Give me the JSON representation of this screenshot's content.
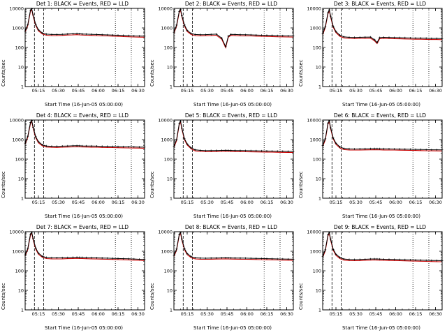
{
  "chart_data": {
    "type": "line",
    "layout": "3x3-grid",
    "ylabel": "Counts/sec",
    "xlabel": "Start Time (16-Jun-05 05:00:00)",
    "yscale": "log",
    "ylim": [
      1,
      10000
    ],
    "yticks": [
      [
        1,
        "1"
      ],
      [
        10,
        "10"
      ],
      [
        100,
        "100"
      ],
      [
        1000,
        "1000"
      ],
      [
        10000,
        "10000"
      ]
    ],
    "xlim_minutes_after_0500": [
      5,
      95
    ],
    "xticks": [
      [
        15,
        "05:15"
      ],
      [
        30,
        "05:30"
      ],
      [
        45,
        "05:45"
      ],
      [
        60,
        "06:00"
      ],
      [
        75,
        "06:15"
      ],
      [
        90,
        "06:30"
      ]
    ],
    "x_minor_step": 5,
    "vlines_dashed_minutes": [
      12,
      19
    ],
    "vlines_dotted_minutes": [
      73,
      85
    ],
    "series_legend": {
      "black": "Events",
      "red": "LLD"
    },
    "colors": {
      "events": "#000000",
      "lld": "#cc0000"
    },
    "lld_ratio": 0.88,
    "t": [
      5,
      7,
      9,
      10,
      11,
      13,
      15,
      18,
      21,
      25,
      29,
      33,
      37,
      41,
      44,
      46,
      48,
      51,
      55,
      59,
      63,
      67,
      71,
      75,
      79,
      83,
      87,
      91,
      95
    ],
    "detectors": [
      {
        "title": "Det 1: BLACK = Events, RED = LLD",
        "values": [
          700,
          1500,
          8000,
          9500,
          4500,
          1500,
          800,
          550,
          480,
          460,
          460,
          470,
          490,
          500,
          510,
          500,
          490,
          480,
          470,
          460,
          450,
          440,
          430,
          420,
          410,
          400,
          390,
          385,
          380
        ]
      },
      {
        "title": "Det 2: BLACK = Events, RED = LLD",
        "values": [
          600,
          1400,
          7000,
          9000,
          4200,
          1400,
          750,
          520,
          460,
          450,
          455,
          465,
          480,
          300,
          110,
          380,
          470,
          460,
          450,
          445,
          440,
          430,
          420,
          415,
          410,
          400,
          395,
          390,
          388
        ]
      },
      {
        "title": "Det 3: BLACK = Events, RED = LLD",
        "values": [
          500,
          1200,
          6000,
          8500,
          4000,
          1200,
          650,
          420,
          350,
          330,
          325,
          330,
          335,
          340,
          250,
          180,
          320,
          330,
          325,
          320,
          315,
          310,
          305,
          300,
          300,
          295,
          290,
          290,
          285
        ]
      },
      {
        "title": "Det 4: BLACK = Events, RED = LLD",
        "values": [
          650,
          1500,
          7500,
          9500,
          4300,
          1400,
          780,
          540,
          470,
          455,
          450,
          460,
          470,
          480,
          485,
          480,
          475,
          470,
          465,
          460,
          450,
          445,
          440,
          435,
          430,
          425,
          420,
          415,
          410
        ]
      },
      {
        "title": "Det 5: BLACK = Events, RED = LLD",
        "values": [
          450,
          1000,
          6500,
          9000,
          3800,
          1100,
          600,
          380,
          300,
          280,
          270,
          272,
          275,
          280,
          282,
          280,
          278,
          275,
          272,
          270,
          268,
          265,
          262,
          260,
          258,
          255,
          252,
          250,
          248
        ]
      },
      {
        "title": "Det 6: BLACK = Events, RED = LLD",
        "values": [
          500,
          1100,
          7000,
          9200,
          4000,
          1200,
          650,
          420,
          350,
          335,
          330,
          332,
          336,
          340,
          342,
          340,
          338,
          335,
          332,
          330,
          326,
          322,
          318,
          314,
          310,
          306,
          302,
          300,
          298
        ]
      },
      {
        "title": "Det 7: BLACK = Events, RED = LLD",
        "values": [
          650,
          1400,
          7500,
          9400,
          4400,
          1450,
          800,
          550,
          480,
          465,
          460,
          465,
          475,
          485,
          490,
          485,
          480,
          472,
          465,
          458,
          450,
          442,
          434,
          426,
          418,
          410,
          400,
          390,
          380
        ]
      },
      {
        "title": "Det 8: BLACK = Events, RED = LLD",
        "values": [
          600,
          1300,
          7200,
          9300,
          4200,
          1350,
          760,
          530,
          460,
          445,
          440,
          445,
          452,
          458,
          462,
          458,
          454,
          450,
          446,
          442,
          436,
          430,
          424,
          418,
          412,
          406,
          400,
          396,
          392
        ]
      },
      {
        "title": "Det 9: BLACK = Events, RED = LLD",
        "values": [
          550,
          1200,
          7000,
          9100,
          4100,
          1250,
          700,
          480,
          400,
          380,
          375,
          380,
          390,
          400,
          405,
          400,
          395,
          390,
          385,
          380,
          374,
          368,
          362,
          356,
          350,
          344,
          338,
          334,
          330
        ]
      }
    ]
  }
}
